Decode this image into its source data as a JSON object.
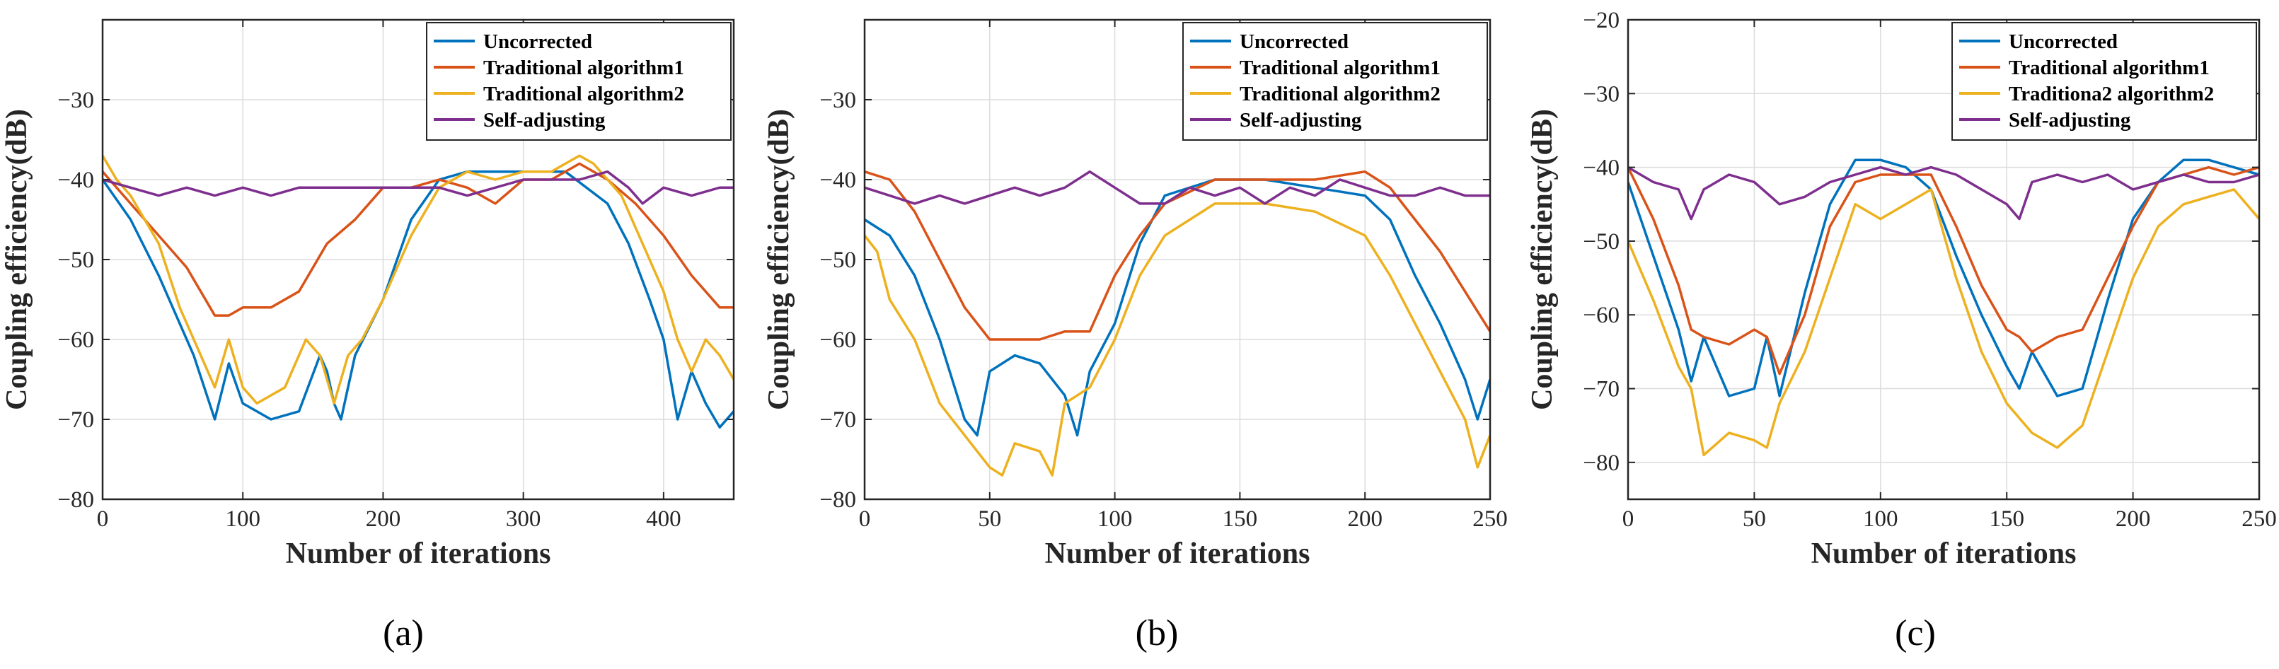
{
  "chart_data": [
    {
      "type": "line",
      "caption": "(a)",
      "xlabel": "Number of iterations",
      "ylabel": "Coupling efficiency(dB)",
      "xlim": [
        0,
        450
      ],
      "ylim": [
        -80,
        -20
      ],
      "xticks": [
        0,
        100,
        200,
        300,
        400
      ],
      "yticks": [
        -80,
        -70,
        -60,
        -50,
        -40,
        -30
      ],
      "grid": true,
      "legend_position": "top-right",
      "series": [
        {
          "name": "Uncorrected",
          "color": "#0072BD",
          "x": [
            0,
            20,
            40,
            55,
            65,
            80,
            90,
            100,
            120,
            140,
            155,
            160,
            165,
            170,
            180,
            200,
            220,
            240,
            260,
            300,
            330,
            360,
            375,
            390,
            400,
            410,
            420,
            430,
            440,
            450
          ],
          "y": [
            -40,
            -45,
            -52,
            -58,
            -62,
            -70,
            -63,
            -68,
            -70,
            -69,
            -62,
            -64,
            -68,
            -70,
            -62,
            -55,
            -45,
            -40,
            -39,
            -39,
            -39,
            -43,
            -48,
            -55,
            -60,
            -70,
            -64,
            -68,
            -71,
            -69
          ]
        },
        {
          "name": "Traditional algorithm1",
          "color": "#D95319",
          "x": [
            0,
            20,
            40,
            60,
            80,
            90,
            100,
            120,
            140,
            160,
            180,
            200,
            220,
            240,
            260,
            280,
            300,
            320,
            340,
            360,
            380,
            400,
            420,
            440,
            450
          ],
          "y": [
            -39,
            -43,
            -47,
            -51,
            -57,
            -57,
            -56,
            -56,
            -54,
            -48,
            -45,
            -41,
            -41,
            -40,
            -41,
            -43,
            -40,
            -40,
            -38,
            -40,
            -43,
            -47,
            -52,
            -56,
            -56
          ]
        },
        {
          "name": "Traditional algorithm2",
          "color": "#EDB120",
          "x": [
            0,
            10,
            20,
            40,
            55,
            70,
            80,
            90,
            100,
            110,
            130,
            145,
            155,
            165,
            175,
            185,
            200,
            220,
            240,
            260,
            280,
            300,
            320,
            340,
            350,
            360,
            370,
            380,
            400,
            410,
            420,
            430,
            440,
            450
          ],
          "y": [
            -37,
            -40,
            -42,
            -48,
            -56,
            -62,
            -66,
            -60,
            -66,
            -68,
            -66,
            -60,
            -62,
            -68,
            -62,
            -60,
            -55,
            -47,
            -41,
            -39,
            -40,
            -39,
            -39,
            -37,
            -38,
            -40,
            -42,
            -46,
            -54,
            -60,
            -64,
            -60,
            -62,
            -65
          ]
        },
        {
          "name": "Self-adjusting",
          "color": "#7E2F8E",
          "x": [
            0,
            20,
            40,
            60,
            80,
            100,
            120,
            140,
            160,
            180,
            200,
            220,
            240,
            260,
            280,
            300,
            320,
            340,
            360,
            375,
            385,
            400,
            420,
            440,
            450
          ],
          "y": [
            -40,
            -41,
            -42,
            -41,
            -42,
            -41,
            -42,
            -41,
            -41,
            -41,
            -41,
            -41,
            -41,
            -42,
            -41,
            -40,
            -40,
            -40,
            -39,
            -41,
            -43,
            -41,
            -42,
            -41,
            -41
          ]
        }
      ]
    },
    {
      "type": "line",
      "caption": "(b)",
      "xlabel": "Number of iterations",
      "ylabel": "Coupling efficiency(dB)",
      "xlim": [
        0,
        250
      ],
      "ylim": [
        -80,
        -20
      ],
      "xticks": [
        0,
        50,
        100,
        150,
        200,
        250
      ],
      "yticks": [
        -80,
        -70,
        -60,
        -50,
        -40,
        -30
      ],
      "grid": true,
      "legend_position": "top-right",
      "series": [
        {
          "name": "Uncorrected",
          "color": "#0072BD",
          "x": [
            0,
            10,
            20,
            30,
            40,
            45,
            50,
            60,
            70,
            80,
            85,
            90,
            100,
            110,
            120,
            140,
            160,
            180,
            200,
            210,
            220,
            230,
            240,
            245,
            250
          ],
          "y": [
            -45,
            -47,
            -52,
            -60,
            -70,
            -72,
            -64,
            -62,
            -63,
            -67,
            -72,
            -64,
            -58,
            -48,
            -42,
            -40,
            -40,
            -41,
            -42,
            -45,
            -52,
            -58,
            -65,
            -70,
            -65
          ]
        },
        {
          "name": "Traditional algorithm1",
          "color": "#D95319",
          "x": [
            0,
            10,
            20,
            30,
            40,
            50,
            60,
            70,
            80,
            90,
            100,
            110,
            120,
            140,
            160,
            180,
            200,
            210,
            220,
            230,
            240,
            250
          ],
          "y": [
            -39,
            -40,
            -44,
            -50,
            -56,
            -60,
            -60,
            -60,
            -59,
            -59,
            -52,
            -47,
            -43,
            -40,
            -40,
            -40,
            -39,
            -41,
            -45,
            -49,
            -54,
            -59
          ]
        },
        {
          "name": "Traditional algorithm2",
          "color": "#EDB120",
          "x": [
            0,
            5,
            10,
            20,
            30,
            40,
            50,
            55,
            60,
            70,
            75,
            80,
            90,
            100,
            110,
            120,
            130,
            140,
            160,
            180,
            200,
            210,
            220,
            230,
            240,
            245,
            250
          ],
          "y": [
            -47,
            -49,
            -55,
            -60,
            -68,
            -72,
            -76,
            -77,
            -73,
            -74,
            -77,
            -68,
            -66,
            -60,
            -52,
            -47,
            -45,
            -43,
            -43,
            -44,
            -47,
            -52,
            -58,
            -64,
            -70,
            -76,
            -72
          ]
        },
        {
          "name": "Self-adjusting",
          "color": "#7E2F8E",
          "x": [
            0,
            10,
            20,
            30,
            40,
            50,
            60,
            70,
            80,
            90,
            100,
            110,
            120,
            130,
            140,
            150,
            160,
            170,
            180,
            190,
            200,
            210,
            220,
            230,
            240,
            250
          ],
          "y": [
            -41,
            -42,
            -43,
            -42,
            -43,
            -42,
            -41,
            -42,
            -41,
            -39,
            -41,
            -43,
            -43,
            -41,
            -42,
            -41,
            -43,
            -41,
            -42,
            -40,
            -41,
            -42,
            -42,
            -41,
            -42,
            -42
          ]
        }
      ]
    },
    {
      "type": "line",
      "caption": "(c)",
      "xlabel": "Number of iterations",
      "ylabel": "Coupling efficiency(dB)",
      "xlim": [
        0,
        250
      ],
      "ylim": [
        -85,
        -20
      ],
      "xticks": [
        0,
        50,
        100,
        150,
        200,
        250
      ],
      "yticks": [
        -80,
        -70,
        -60,
        -50,
        -40,
        -30,
        -20
      ],
      "grid": true,
      "legend_position": "top-right",
      "series": [
        {
          "name": "Uncorrected",
          "color": "#0072BD",
          "x": [
            0,
            10,
            20,
            25,
            30,
            40,
            50,
            55,
            60,
            70,
            80,
            90,
            100,
            110,
            120,
            130,
            140,
            150,
            155,
            160,
            170,
            180,
            185,
            190,
            200,
            210,
            220,
            230,
            240,
            250
          ],
          "y": [
            -42,
            -52,
            -62,
            -69,
            -63,
            -71,
            -70,
            -63,
            -71,
            -57,
            -45,
            -39,
            -39,
            -40,
            -43,
            -52,
            -60,
            -67,
            -70,
            -65,
            -71,
            -70,
            -64,
            -58,
            -47,
            -42,
            -39,
            -39,
            -40,
            -41
          ]
        },
        {
          "name": "Traditional algorithm1",
          "color": "#D95319",
          "x": [
            0,
            10,
            20,
            25,
            30,
            40,
            50,
            55,
            60,
            70,
            80,
            90,
            100,
            110,
            120,
            130,
            140,
            150,
            155,
            160,
            170,
            180,
            190,
            200,
            210,
            220,
            230,
            240,
            250
          ],
          "y": [
            -40,
            -47,
            -56,
            -62,
            -63,
            -64,
            -62,
            -63,
            -68,
            -60,
            -48,
            -42,
            -41,
            -41,
            -41,
            -48,
            -56,
            -62,
            -63,
            -65,
            -63,
            -62,
            -55,
            -48,
            -42,
            -41,
            -40,
            -41,
            -40
          ]
        },
        {
          "name": "Traditiona2 algorithm2",
          "color": "#EDB120",
          "x": [
            0,
            10,
            20,
            25,
            30,
            40,
            50,
            55,
            60,
            70,
            80,
            90,
            100,
            110,
            120,
            130,
            140,
            150,
            160,
            170,
            180,
            190,
            200,
            210,
            220,
            230,
            240,
            250
          ],
          "y": [
            -50,
            -58,
            -67,
            -70,
            -79,
            -76,
            -77,
            -78,
            -72,
            -65,
            -55,
            -45,
            -47,
            -45,
            -43,
            -55,
            -65,
            -72,
            -76,
            -78,
            -75,
            -65,
            -55,
            -48,
            -45,
            -44,
            -43,
            -47
          ]
        },
        {
          "name": "Self-adjusting",
          "color": "#7E2F8E",
          "x": [
            0,
            10,
            20,
            25,
            30,
            40,
            50,
            60,
            70,
            80,
            90,
            100,
            110,
            120,
            130,
            140,
            150,
            155,
            160,
            170,
            180,
            190,
            200,
            210,
            220,
            230,
            240,
            250
          ],
          "y": [
            -40,
            -42,
            -43,
            -47,
            -43,
            -41,
            -42,
            -45,
            -44,
            -42,
            -41,
            -40,
            -41,
            -40,
            -41,
            -43,
            -45,
            -47,
            -42,
            -41,
            -42,
            -41,
            -43,
            -42,
            -41,
            -42,
            -42,
            -41
          ]
        }
      ]
    }
  ]
}
